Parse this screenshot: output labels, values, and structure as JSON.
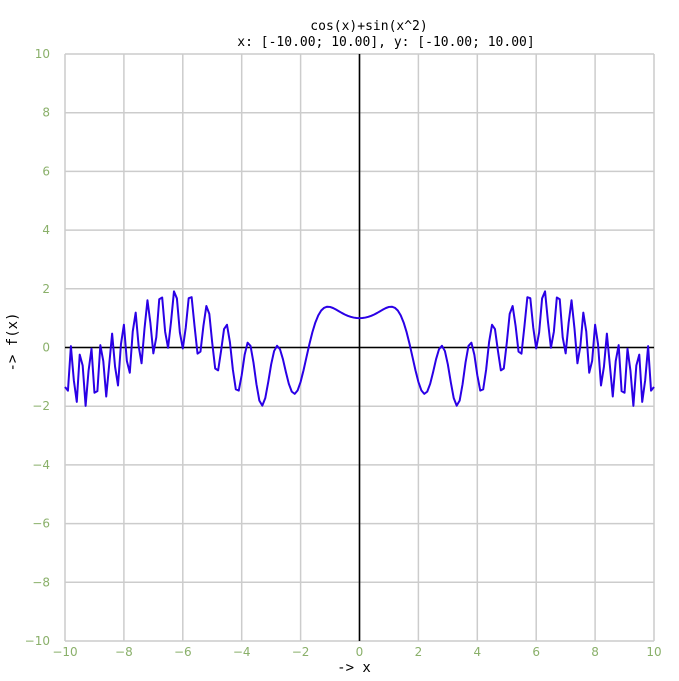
{
  "chart_data": {
    "type": "line",
    "title": "cos(x)+sin(x^2)",
    "subtitle": "x: [-10.00; 10.00], y: [-10.00; 10.00]",
    "xlabel": "-> x",
    "ylabel": "-> f(x)",
    "xlim": [
      -10,
      10
    ],
    "ylim": [
      -10,
      10
    ],
    "x_ticks": [
      -10,
      -8,
      -6,
      -4,
      -2,
      0,
      2,
      4,
      6,
      8,
      10
    ],
    "y_ticks": [
      -10,
      -8,
      -6,
      -4,
      -2,
      0,
      2,
      4,
      6,
      8,
      10
    ],
    "x_tick_labels": [
      "−10",
      "−8",
      "−6",
      "−4",
      "−2",
      "0",
      "2",
      "4",
      "6",
      "8",
      "10"
    ],
    "y_tick_labels": [
      "−10",
      "−8",
      "−6",
      "−4",
      "−2",
      "0",
      "2",
      "4",
      "6",
      "8",
      "10"
    ],
    "grid": true,
    "function": "cos(x)+sin(x^2)",
    "sampling": {
      "start": -10,
      "end": 10,
      "count": 201
    },
    "colors": {
      "line": "#2a00e6",
      "grid": "#cccccc",
      "tick_label": "#8ab06a",
      "axis": "#000000"
    },
    "series": [
      {
        "values_from": "function"
      }
    ]
  }
}
